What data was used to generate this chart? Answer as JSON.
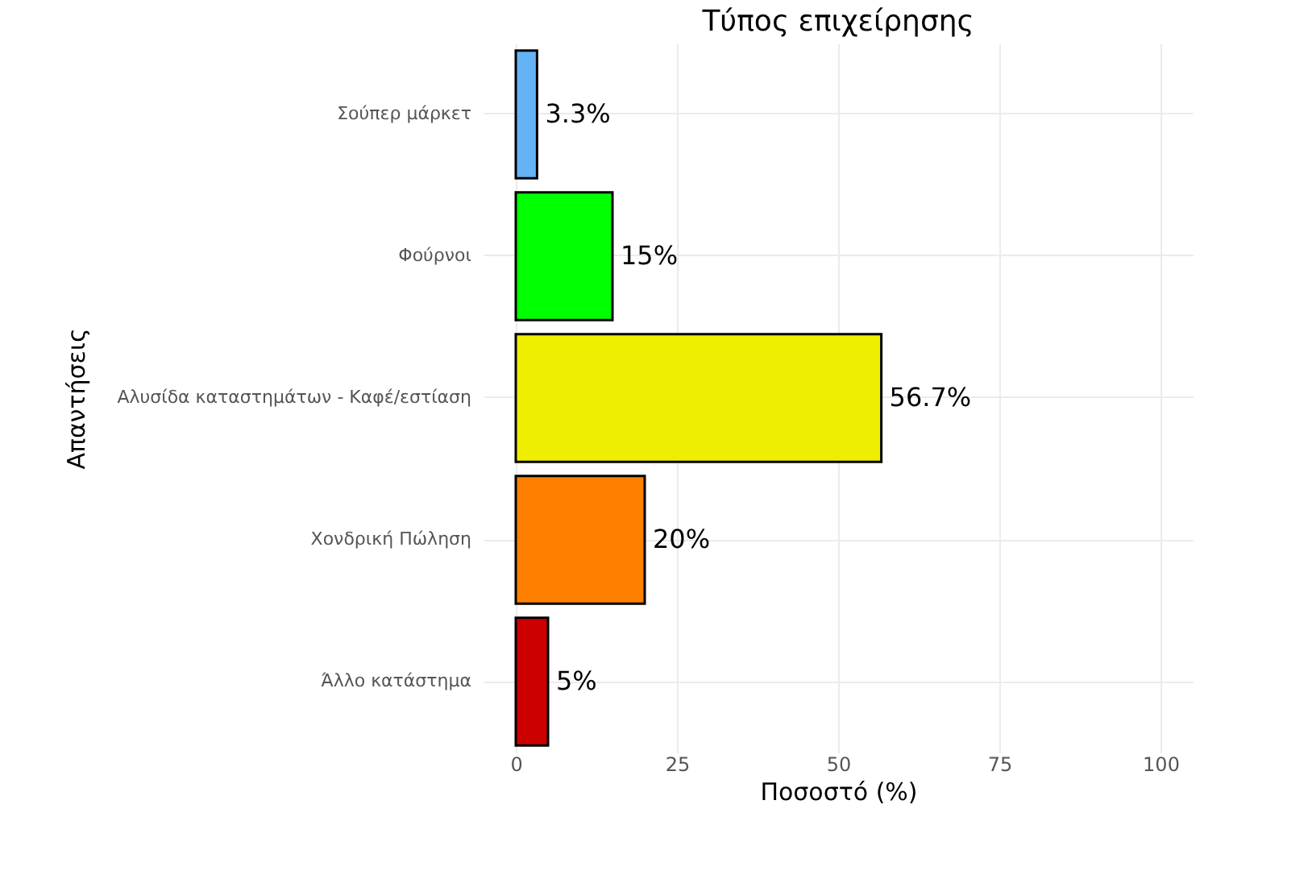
{
  "chart_data": {
    "type": "bar",
    "orientation": "horizontal",
    "title": "Τύπος επιχείρησης",
    "xlabel": "Ποσοστό (%)",
    "ylabel": "Απαντήσεις",
    "categories": [
      "Σούπερ μάρκετ",
      "Φούρνοι",
      "Αλυσίδα καταστημάτων - Καφέ/εστίαση",
      "Χονδρική Πώληση",
      "Άλλο κατάστημα"
    ],
    "values": [
      3.3,
      15,
      56.7,
      20,
      5
    ],
    "colors": [
      "#63b3f5",
      "#00ff00",
      "#eeee00",
      "#ff8000",
      "#cc0000"
    ],
    "value_labels": [
      "3.3%",
      "15%",
      "56.7%",
      "20%",
      "5%"
    ],
    "xlim": [
      -5,
      105
    ],
    "xticks": [
      0,
      25,
      50,
      75,
      100
    ],
    "grid": true
  }
}
